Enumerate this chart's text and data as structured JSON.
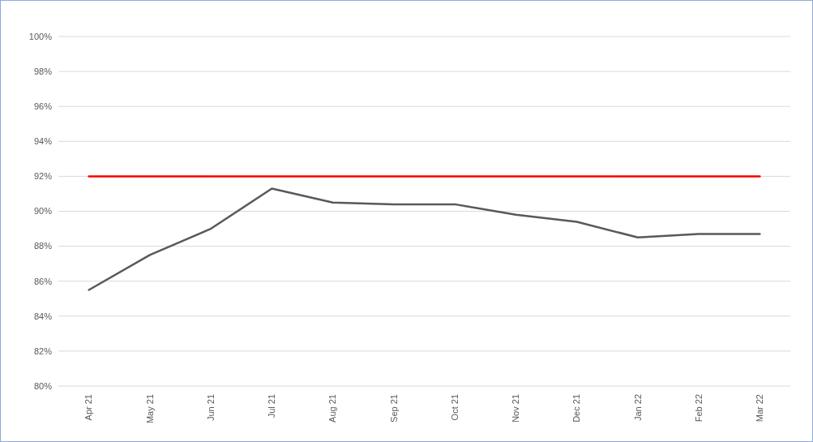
{
  "chart_data": {
    "type": "line",
    "categories": [
      "Apr 21",
      "May 21",
      "Jun 21",
      "Jul 21",
      "Aug 21",
      "Sep 21",
      "Oct 21",
      "Nov 21",
      "Dec 21",
      "Jan 22",
      "Feb 22",
      "Mar 22"
    ],
    "series": [
      {
        "color": "#595959",
        "values": [
          85.5,
          87.5,
          89.0,
          91.3,
          90.5,
          90.4,
          90.4,
          89.8,
          89.4,
          88.5,
          88.7,
          88.7
        ]
      },
      {
        "color": "#ff0000",
        "values": [
          92,
          92,
          92,
          92,
          92,
          92,
          92,
          92,
          92,
          92,
          92,
          92
        ]
      }
    ],
    "ylim": [
      80,
      100
    ],
    "yticks": [
      {
        "value": 80,
        "label": "80%"
      },
      {
        "value": 82,
        "label": "82%"
      },
      {
        "value": 84,
        "label": "84%"
      },
      {
        "value": 86,
        "label": "86%"
      },
      {
        "value": 88,
        "label": "88%"
      },
      {
        "value": 90,
        "label": "90%"
      },
      {
        "value": 92,
        "label": "92%"
      },
      {
        "value": 94,
        "label": "94%"
      },
      {
        "value": 96,
        "label": "96%"
      },
      {
        "value": 98,
        "label": "98%"
      },
      {
        "value": 100,
        "label": "100%"
      }
    ],
    "grid": "y",
    "marker": "none",
    "line_style": "solid"
  }
}
